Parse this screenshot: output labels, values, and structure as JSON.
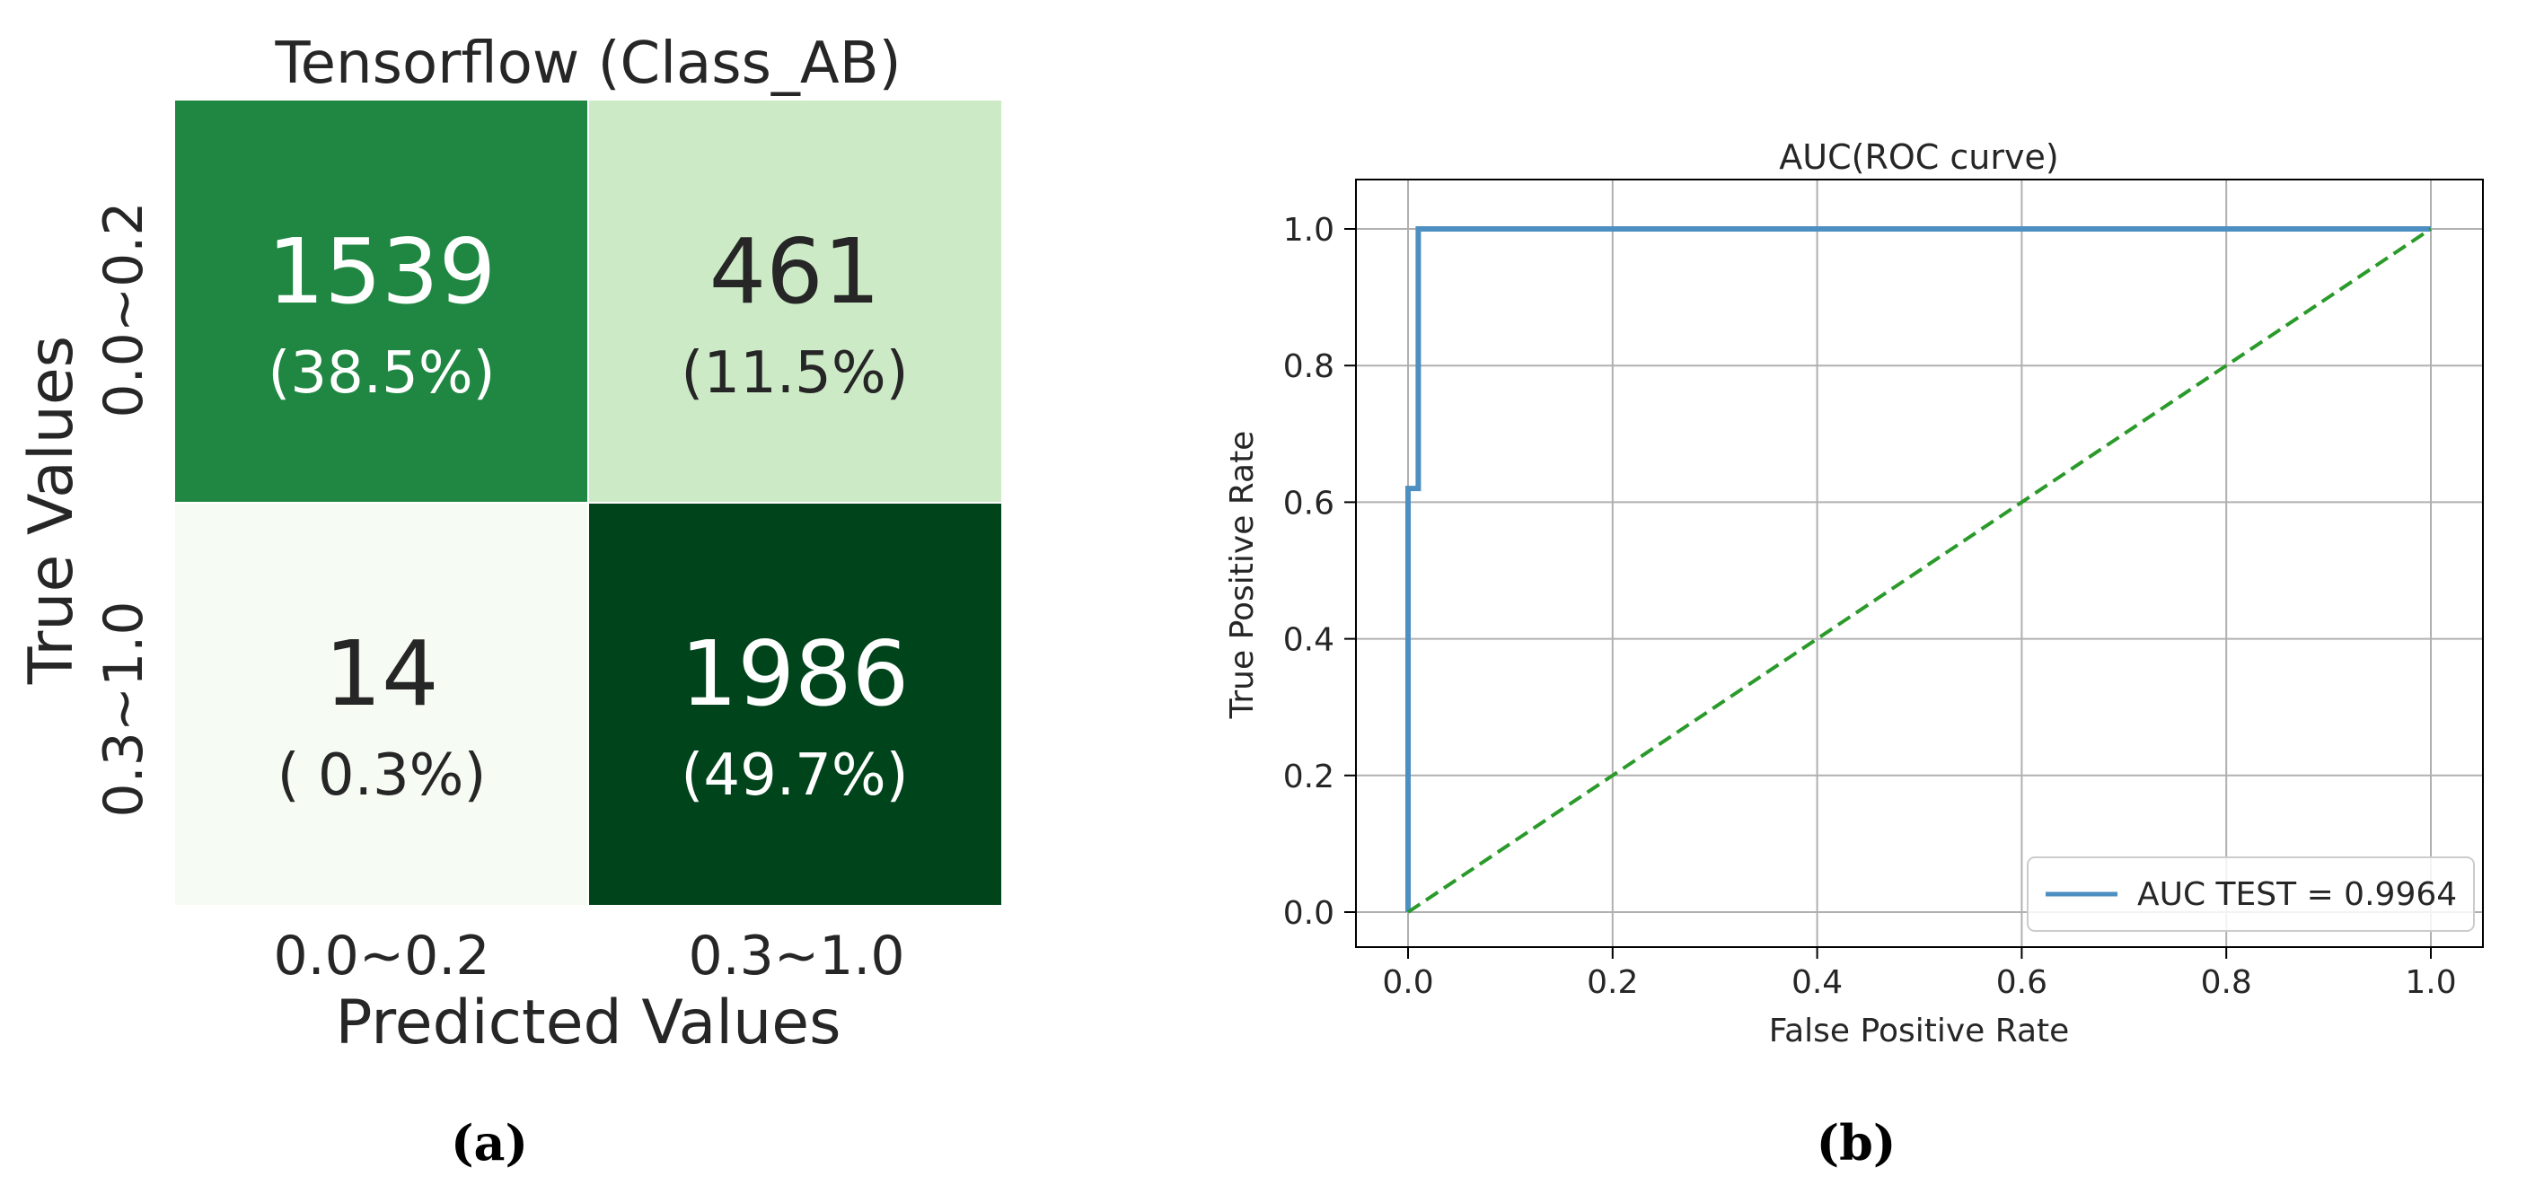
{
  "chart_data": [
    {
      "type": "heatmap",
      "title": "Tensorflow (Class_AB)",
      "xlabel": "Predicted Values",
      "ylabel": "True Values",
      "x_categories": [
        "0.0~0.2",
        "0.3~1.0"
      ],
      "y_categories": [
        "0.0~0.2",
        "0.3~1.0"
      ],
      "colormap": "Greens",
      "cells": [
        {
          "row": 0,
          "col": 0,
          "value": 1539,
          "percent": "(38.5%)",
          "fill": "#1f8741",
          "text_color": "#ffffff"
        },
        {
          "row": 0,
          "col": 1,
          "value": 461,
          "percent": "(11.5%)",
          "fill": "#cdeac7",
          "text_color": "#262626"
        },
        {
          "row": 1,
          "col": 0,
          "value": 14,
          "percent": "( 0.3%)",
          "fill": "#f6fbf3",
          "text_color": "#262626"
        },
        {
          "row": 1,
          "col": 1,
          "value": 1986,
          "percent": "(49.7%)",
          "fill": "#00441b",
          "text_color": "#ffffff"
        }
      ],
      "panel_label": "(a)"
    },
    {
      "type": "line",
      "title": "AUC(ROC curve)",
      "xlabel": "False Positive Rate",
      "ylabel": "True Positive Rate",
      "xlim": [
        0.0,
        1.0
      ],
      "ylim": [
        0.0,
        1.0
      ],
      "xticks": [
        "0.0",
        "0.2",
        "0.4",
        "0.6",
        "0.8",
        "1.0"
      ],
      "yticks": [
        "0.0",
        "0.2",
        "0.4",
        "0.6",
        "0.8",
        "1.0"
      ],
      "grid": true,
      "legend_position": "lower-right",
      "series": [
        {
          "name": "AUC TEST = 0.9964",
          "color": "#4c8fc0",
          "style": "solid",
          "x": [
            0.0,
            0.0,
            0.01,
            0.01,
            1.0
          ],
          "y": [
            0.0,
            0.62,
            0.62,
            1.0,
            1.0
          ]
        },
        {
          "name": "",
          "color": "#2a9a2a",
          "style": "dashed",
          "x": [
            0.0,
            1.0
          ],
          "y": [
            0.0,
            1.0
          ]
        }
      ],
      "panel_label": "(b)"
    }
  ]
}
